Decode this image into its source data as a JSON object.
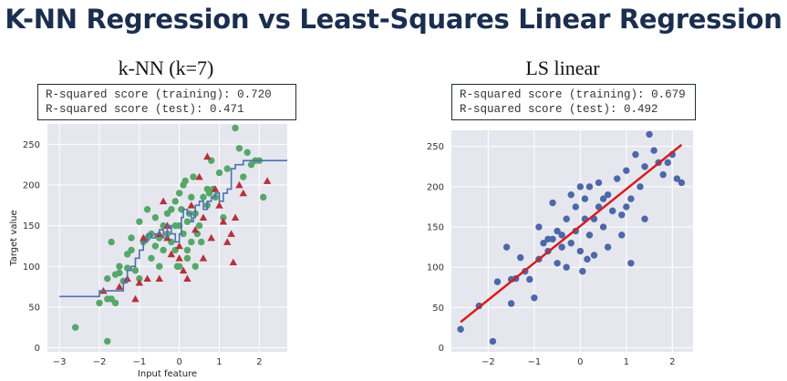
{
  "slide_title": "K-NN Regression vs Least-Squares Linear Regression",
  "panels": [
    {
      "title": "k-NN (k=7)",
      "scores": {
        "train_label": "R-squared score (training):",
        "train_value": "0.720",
        "test_label": "R-squared score (test):",
        "test_value": "0.471"
      }
    },
    {
      "title": "LS linear",
      "scores": {
        "train_label": "R-squared score (training):",
        "train_value": "0.679",
        "test_label": "R-squared score (test):",
        "test_value": "0.492"
      }
    }
  ],
  "colors": {
    "plot_bg": "#e6e6ef",
    "grid": "#ffffff",
    "train_points": "#55a868",
    "test_points": "#b5323a",
    "knn_line": "#4c72b0",
    "ls_points": "#4c68a6",
    "ls_line": "#d41f1f",
    "title_text": "#1b2e4f"
  },
  "chart_data": [
    {
      "type": "scatter",
      "xlabel": "Input feature",
      "ylabel": "Target value",
      "xlim": [
        -3.3,
        2.7
      ],
      "ylim": [
        -5,
        275
      ],
      "xticks": [
        -3,
        -2,
        -1,
        0,
        1,
        2
      ],
      "yticks": [
        0,
        50,
        100,
        150,
        200,
        250
      ],
      "grid": true,
      "series": [
        {
          "kind": "points",
          "marker": "circle",
          "color": "#55a868",
          "points": [
            [
              -2.6,
              25
            ],
            [
              -1.8,
              8
            ],
            [
              -2.0,
              55
            ],
            [
              -1.8,
              85
            ],
            [
              -1.6,
              55
            ],
            [
              -1.7,
              60
            ],
            [
              -1.6,
              90
            ],
            [
              -1.5,
              92
            ],
            [
              -1.7,
              130
            ],
            [
              -1.5,
              100
            ],
            [
              -1.4,
              82
            ],
            [
              -1.3,
              115
            ],
            [
              -1.3,
              98
            ],
            [
              -1.2,
              135
            ],
            [
              -1.2,
              120
            ],
            [
              -1.1,
              95
            ],
            [
              -1.0,
              85
            ],
            [
              -1.0,
              155
            ],
            [
              -0.9,
              130
            ],
            [
              -0.8,
              135
            ],
            [
              -0.8,
              170
            ],
            [
              -0.7,
              110
            ],
            [
              -0.7,
              140
            ],
            [
              -0.6,
              125
            ],
            [
              -0.6,
              160
            ],
            [
              -0.5,
              135
            ],
            [
              -0.5,
              100
            ],
            [
              -0.4,
              150
            ],
            [
              -0.4,
              120
            ],
            [
              -0.3,
              140
            ],
            [
              -0.3,
              165
            ],
            [
              -0.2,
              130
            ],
            [
              -0.2,
              170
            ],
            [
              -0.1,
              120
            ],
            [
              -0.1,
              180
            ],
            [
              -0.05,
              100
            ],
            [
              0.0,
              150
            ],
            [
              0.0,
              190
            ],
            [
              0.05,
              170
            ],
            [
              0.1,
              200
            ],
            [
              0.1,
              140
            ],
            [
              0.15,
              205
            ],
            [
              0.2,
              155
            ],
            [
              0.2,
              110
            ],
            [
              0.25,
              165
            ],
            [
              0.3,
              130
            ],
            [
              0.3,
              185
            ],
            [
              0.35,
              210
            ],
            [
              0.4,
              165
            ],
            [
              0.4,
              100
            ],
            [
              0.5,
              150
            ],
            [
              0.55,
              130
            ],
            [
              0.6,
              185
            ],
            [
              0.7,
              175
            ],
            [
              0.75,
              190
            ],
            [
              0.8,
              230
            ],
            [
              0.85,
              195
            ],
            [
              0.9,
              185
            ],
            [
              1.0,
              215
            ],
            [
              1.1,
              160
            ],
            [
              1.2,
              220
            ],
            [
              1.4,
              270
            ],
            [
              1.5,
              245
            ],
            [
              1.7,
              240
            ],
            [
              1.8,
              225
            ],
            [
              1.9,
              230
            ],
            [
              2.0,
              230
            ],
            [
              2.1,
              185
            ],
            [
              1.6,
              210
            ],
            [
              0.0,
              100
            ],
            [
              -0.1,
              150
            ],
            [
              0.2,
              120
            ],
            [
              0.45,
              140
            ],
            [
              -1.8,
              60
            ],
            [
              0.7,
              195
            ]
          ]
        },
        {
          "kind": "points",
          "marker": "triangle",
          "color": "#b5323a",
          "points": [
            [
              -1.9,
              70
            ],
            [
              -1.5,
              75
            ],
            [
              -1.3,
              85
            ],
            [
              -1.1,
              60
            ],
            [
              -0.9,
              135
            ],
            [
              -0.5,
              85
            ],
            [
              -0.4,
              180
            ],
            [
              -0.3,
              135
            ],
            [
              -0.2,
              115
            ],
            [
              0.0,
              125
            ],
            [
              0.1,
              95
            ],
            [
              0.3,
              175
            ],
            [
              0.4,
              145
            ],
            [
              0.5,
              210
            ],
            [
              0.6,
              160
            ],
            [
              0.8,
              135
            ],
            [
              0.9,
              195
            ],
            [
              1.0,
              175
            ],
            [
              1.1,
              155
            ],
            [
              1.3,
              140
            ],
            [
              1.35,
              105
            ],
            [
              1.4,
              160
            ],
            [
              1.5,
              200
            ],
            [
              1.6,
              190
            ],
            [
              0.2,
              85
            ],
            [
              -0.5,
              140
            ],
            [
              0.7,
              235
            ],
            [
              -0.8,
              85
            ],
            [
              1.2,
              130
            ],
            [
              -1.0,
              80
            ],
            [
              2.2,
              205
            ],
            [
              0.6,
              110
            ],
            [
              0.0,
              110
            ],
            [
              -0.3,
              150
            ]
          ]
        },
        {
          "kind": "step",
          "name": "",
          "color": "#4c72b0",
          "points": [
            [
              -3.0,
              63
            ],
            [
              -2.1,
              63
            ],
            [
              -2.0,
              70
            ],
            [
              -1.6,
              70
            ],
            [
              -1.4,
              80
            ],
            [
              -1.3,
              95
            ],
            [
              -1.2,
              100
            ],
            [
              -1.1,
              110
            ],
            [
              -1.0,
              120
            ],
            [
              -0.9,
              130
            ],
            [
              -0.8,
              140
            ],
            [
              -0.7,
              135
            ],
            [
              -0.6,
              140
            ],
            [
              -0.5,
              145
            ],
            [
              -0.4,
              135
            ],
            [
              -0.3,
              150
            ],
            [
              -0.2,
              140
            ],
            [
              -0.1,
              130
            ],
            [
              0.0,
              140
            ],
            [
              0.05,
              160
            ],
            [
              0.1,
              170
            ],
            [
              0.2,
              165
            ],
            [
              0.3,
              155
            ],
            [
              0.35,
              160
            ],
            [
              0.4,
              175
            ],
            [
              0.5,
              180
            ],
            [
              0.6,
              170
            ],
            [
              0.7,
              180
            ],
            [
              0.8,
              185
            ],
            [
              0.9,
              190
            ],
            [
              1.0,
              180
            ],
            [
              1.1,
              190
            ],
            [
              1.2,
              195
            ],
            [
              1.3,
              220
            ],
            [
              1.4,
              225
            ],
            [
              1.6,
              230
            ],
            [
              2.7,
              230
            ]
          ]
        }
      ]
    },
    {
      "type": "scatter",
      "xlabel": "",
      "ylabel": "",
      "xlim": [
        -2.8,
        2.45
      ],
      "ylim": [
        -5,
        270
      ],
      "xticks": [
        -2,
        -1,
        0,
        1,
        2
      ],
      "yticks": [
        0,
        50,
        100,
        150,
        200,
        250
      ],
      "grid": true,
      "series": [
        {
          "kind": "points",
          "marker": "circle",
          "color": "#4c68a6",
          "points": [
            [
              -2.6,
              23
            ],
            [
              -2.2,
              52
            ],
            [
              -1.9,
              8
            ],
            [
              -1.8,
              82
            ],
            [
              -1.6,
              125
            ],
            [
              -1.5,
              55
            ],
            [
              -1.4,
              86
            ],
            [
              -1.3,
              112
            ],
            [
              -1.2,
              95
            ],
            [
              -1.1,
              85
            ],
            [
              -1.0,
              62
            ],
            [
              -0.9,
              150
            ],
            [
              -0.9,
              110
            ],
            [
              -0.8,
              130
            ],
            [
              -0.7,
              120
            ],
            [
              -0.6,
              135
            ],
            [
              -0.6,
              180
            ],
            [
              -0.5,
              145
            ],
            [
              -0.5,
              105
            ],
            [
              -0.4,
              125
            ],
            [
              -0.3,
              160
            ],
            [
              -0.3,
              100
            ],
            [
              -0.2,
              130
            ],
            [
              -0.2,
              190
            ],
            [
              -0.1,
              145
            ],
            [
              -0.1,
              175
            ],
            [
              0.0,
              120
            ],
            [
              0.0,
              200
            ],
            [
              0.05,
              95
            ],
            [
              0.1,
              160
            ],
            [
              0.1,
              185
            ],
            [
              0.2,
              140
            ],
            [
              0.2,
              200
            ],
            [
              0.3,
              160
            ],
            [
              0.3,
              115
            ],
            [
              0.4,
              175
            ],
            [
              0.4,
              205
            ],
            [
              0.5,
              185
            ],
            [
              0.5,
              150
            ],
            [
              0.6,
              190
            ],
            [
              0.7,
              170
            ],
            [
              0.8,
              210
            ],
            [
              0.9,
              140
            ],
            [
              1.0,
              175
            ],
            [
              1.0,
              220
            ],
            [
              1.1,
              185
            ],
            [
              1.2,
              240
            ],
            [
              1.3,
              200
            ],
            [
              1.4,
              225
            ],
            [
              1.5,
              265
            ],
            [
              1.6,
              245
            ],
            [
              1.7,
              230
            ],
            [
              1.8,
              215
            ],
            [
              1.9,
              230
            ],
            [
              2.0,
              240
            ],
            [
              2.1,
              210
            ],
            [
              2.2,
              205
            ],
            [
              0.6,
              125
            ],
            [
              -0.4,
              140
            ],
            [
              0.9,
              165
            ],
            [
              1.4,
              160
            ],
            [
              -1.5,
              85
            ],
            [
              0.15,
              110
            ],
            [
              -0.7,
              135
            ],
            [
              1.1,
              105
            ]
          ]
        },
        {
          "kind": "line",
          "name": "",
          "color": "#d41f1f",
          "points": [
            [
              -2.6,
              32
            ],
            [
              2.2,
              252
            ]
          ]
        }
      ]
    }
  ]
}
